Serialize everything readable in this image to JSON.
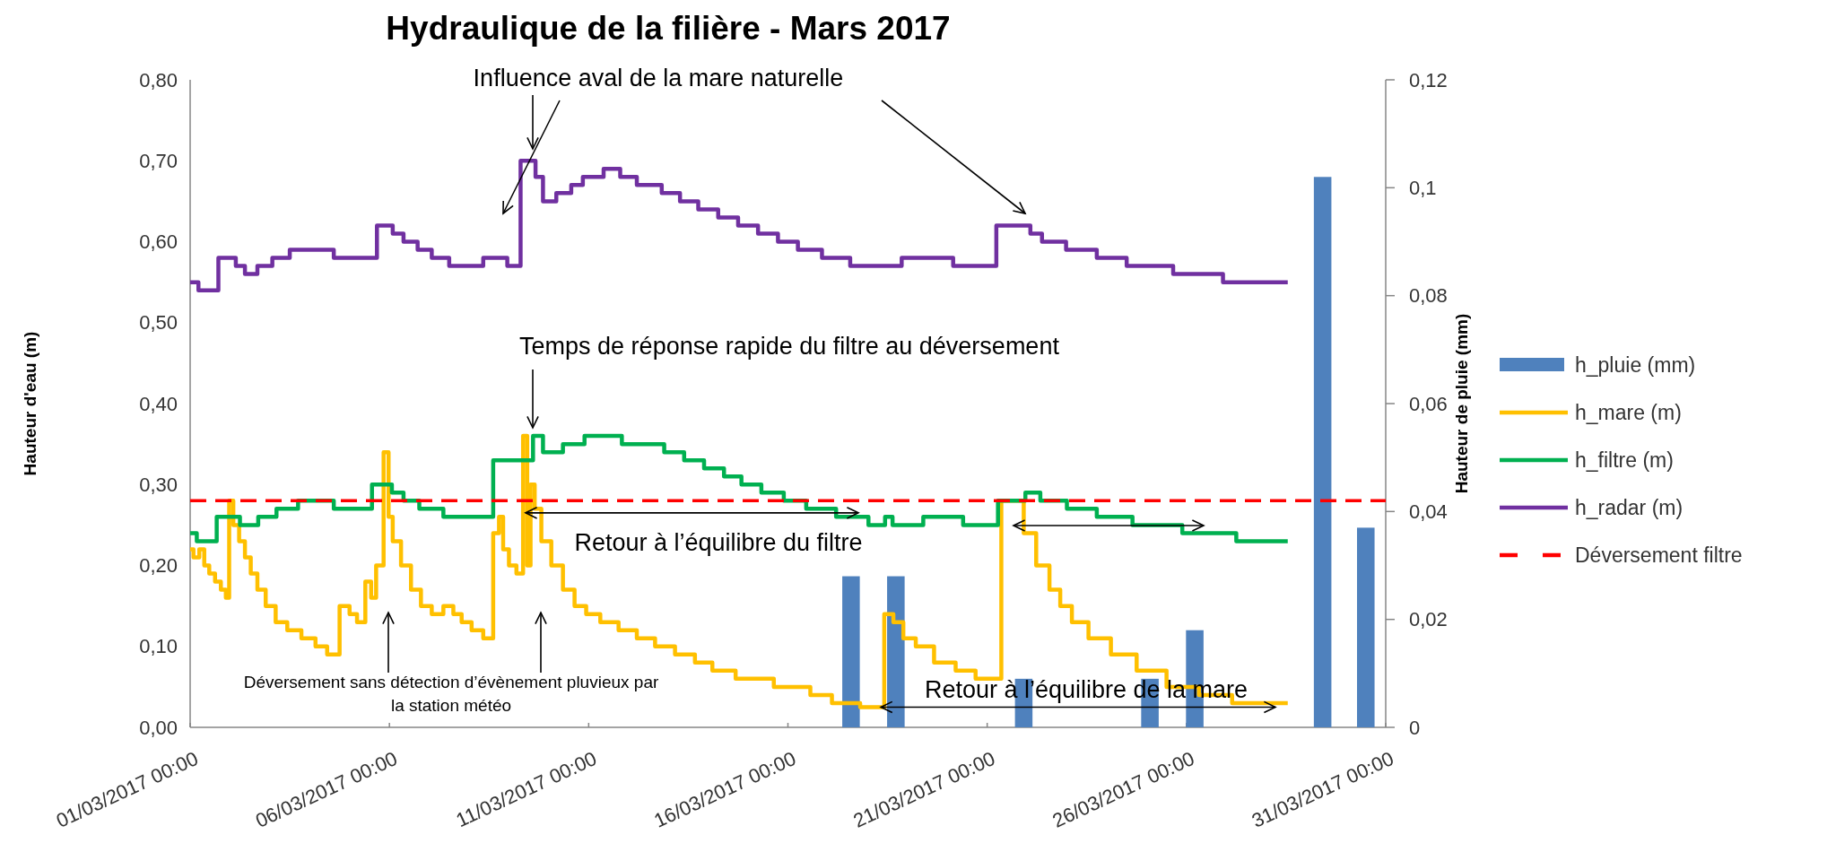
{
  "chart_data": {
    "type": "step",
    "title": "Hydraulique de la filière - Mars 2017",
    "ylabel": "Hauteur d'eau (m)",
    "y2label": "Hauteur de pluie (mm)",
    "xlim": [
      "2017-03-01",
      "2017-03-31"
    ],
    "xticks": [
      {
        "value": "2017-03-01",
        "label": "01/03/2017 00:00"
      },
      {
        "value": "2017-03-06",
        "label": "06/03/2017 00:00"
      },
      {
        "value": "2017-03-11",
        "label": "11/03/2017 00:00"
      },
      {
        "value": "2017-03-16",
        "label": "16/03/2017 00:00"
      },
      {
        "value": "2017-03-21",
        "label": "21/03/2017 00:00"
      },
      {
        "value": "2017-03-26",
        "label": "26/03/2017 00:00"
      },
      {
        "value": "2017-03-31",
        "label": "31/03/2017 00:00"
      }
    ],
    "ylim": [
      0,
      0.8
    ],
    "yticks": [
      {
        "value": 0,
        "label": "0,00"
      },
      {
        "value": 0.1,
        "label": "0,10"
      },
      {
        "value": 0.2,
        "label": "0,20"
      },
      {
        "value": 0.3,
        "label": "0,30"
      },
      {
        "value": 0.4,
        "label": "0,40"
      },
      {
        "value": 0.5,
        "label": "0,50"
      },
      {
        "value": 0.6,
        "label": "0,60"
      },
      {
        "value": 0.7,
        "label": "0,70"
      },
      {
        "value": 0.8,
        "label": "0,80"
      }
    ],
    "y2lim": [
      0,
      0.12
    ],
    "y2ticks": [
      0,
      {
        "value": 0.02,
        "label": "0,02"
      },
      {
        "value": 0.04,
        "label": "0,04"
      },
      {
        "value": 0.06,
        "label": "0,06"
      },
      {
        "value": 0.08,
        "label": "0,08"
      },
      {
        "value": 0.1,
        "label": "0,1"
      },
      {
        "value": 0.12,
        "label": "0,12"
      }
    ],
    "legend": "right",
    "grid": false,
    "series": [
      {
        "name": "h_pluie (mm)",
        "type": "bar",
        "axis": "y2",
        "color": "#4f81bd",
        "x": [
          "2017-03-17T14:00",
          "2017-03-18T17:00",
          "2017-03-21T22:00",
          "2017-03-25T02:00",
          "2017-03-26T05:00",
          "2017-03-29T10:00",
          "2017-03-30T12:00"
        ],
        "values": [
          0.028,
          0.028,
          0.009,
          0.009,
          0.018,
          0.102,
          0.037
        ]
      },
      {
        "name": "h_mare (m)",
        "color": "#ffc000",
        "x": [
          "2017-03-01T00:00",
          "2017-03-01T04:00",
          "2017-03-01T07:00",
          "2017-03-01T10:00",
          "2017-03-01T13:00",
          "2017-03-01T17:00",
          "2017-03-01T20:00",
          "2017-03-01T23:00",
          "2017-03-02T00:00",
          "2017-03-02T04:00",
          "2017-03-02T07:00",
          "2017-03-02T11:00",
          "2017-03-02T14:00",
          "2017-03-02T19:00",
          "2017-03-03T00:00",
          "2017-03-03T07:00",
          "2017-03-03T14:00",
          "2017-03-04T00:00",
          "2017-03-04T07:00",
          "2017-03-04T14:00",
          "2017-03-04T22:00",
          "2017-03-05T02:00",
          "2017-03-05T07:00",
          "2017-03-05T12:00",
          "2017-03-05T14:00",
          "2017-03-05T18:00",
          "2017-03-05T23:00",
          "2017-03-06T00:00",
          "2017-03-06T04:00",
          "2017-03-06T10:00",
          "2017-03-06T16:00",
          "2017-03-06T22:00",
          "2017-03-07T05:00",
          "2017-03-07T12:00",
          "2017-03-07T17:00",
          "2017-03-07T22:00",
          "2017-03-08T05:00",
          "2017-03-08T12:00",
          "2017-03-08T17:00",
          "2017-03-08T19:00",
          "2017-03-08T22:00",
          "2017-03-09T02:00",
          "2017-03-09T07:00",
          "2017-03-09T10:00",
          "2017-03-09T12:00",
          "2017-03-09T14:00",
          "2017-03-09T17:00",
          "2017-03-09T22:00",
          "2017-03-10T05:00",
          "2017-03-10T12:00",
          "2017-03-10T19:00",
          "2017-03-11T02:00",
          "2017-03-11T12:00",
          "2017-03-12T00:00",
          "2017-03-12T10:00",
          "2017-03-12T22:00",
          "2017-03-13T10:00",
          "2017-03-13T22:00",
          "2017-03-14T07:00",
          "2017-03-15T02:00",
          "2017-03-16T05:00",
          "2017-03-16T22:00",
          "2017-03-17T07:00",
          "2017-03-18T08:00",
          "2017-03-18T12:00",
          "2017-03-18T19:00",
          "2017-03-19T00:00",
          "2017-03-19T10:00",
          "2017-03-19T22:00",
          "2017-03-20T12:00",
          "2017-03-20T22:00",
          "2017-03-21T19:00",
          "2017-03-22T01:00",
          "2017-03-22T10:00",
          "2017-03-22T17:00",
          "2017-03-22T23:00",
          "2017-03-23T07:00",
          "2017-03-23T19:00",
          "2017-03-24T10:00",
          "2017-03-25T02:00",
          "2017-03-25T22:00",
          "2017-03-26T17:00",
          "2017-03-27T14:00",
          "2017-03-28T13:00"
        ],
        "values": [
          0.22,
          0.21,
          0.22,
          0.2,
          0.19,
          0.18,
          0.17,
          0.16,
          0.28,
          0.25,
          0.23,
          0.21,
          0.19,
          0.17,
          0.15,
          0.13,
          0.12,
          0.11,
          0.1,
          0.09,
          0.15,
          0.14,
          0.13,
          0.18,
          0.16,
          0.2,
          0.34,
          0.26,
          0.23,
          0.2,
          0.17,
          0.15,
          0.14,
          0.15,
          0.14,
          0.13,
          0.12,
          0.11,
          0.24,
          0.26,
          0.22,
          0.2,
          0.19,
          0.36,
          0.2,
          0.3,
          0.27,
          0.23,
          0.2,
          0.17,
          0.15,
          0.14,
          0.13,
          0.12,
          0.11,
          0.1,
          0.09,
          0.08,
          0.07,
          0.06,
          0.05,
          0.04,
          0.03,
          0.025,
          0.14,
          0.13,
          0.11,
          0.1,
          0.08,
          0.07,
          0.06,
          0.28,
          0.24,
          0.2,
          0.17,
          0.15,
          0.13,
          0.11,
          0.09,
          0.07,
          0.05,
          0.04,
          0.03,
          0.03
        ]
      },
      {
        "name": "h_filtre (m)",
        "color": "#00b050",
        "x": [
          "2017-03-01T00:00",
          "2017-03-01T08:00",
          "2017-03-02T00:00",
          "2017-03-02T12:00",
          "2017-03-02T22:00",
          "2017-03-03T10:00",
          "2017-03-04T00:00",
          "2017-03-05T05:00",
          "2017-03-05T22:00",
          "2017-03-06T05:00",
          "2017-03-06T12:00",
          "2017-03-07T00:00",
          "2017-03-07T17:00",
          "2017-03-09T12:00",
          "2017-03-09T17:00",
          "2017-03-10T00:00",
          "2017-03-10T17:00",
          "2017-03-11T02:00",
          "2017-03-12T14:00",
          "2017-03-13T05:00",
          "2017-03-13T14:00",
          "2017-03-14T05:00",
          "2017-03-14T14:00",
          "2017-03-15T02:00",
          "2017-03-15T14:00",
          "2017-03-16T05:00",
          "2017-03-16T17:00",
          "2017-03-17T17:00",
          "2017-03-18T08:00",
          "2017-03-18T13:00",
          "2017-03-18T17:00",
          "2017-03-20T02:00",
          "2017-03-20T17:00",
          "2017-03-21T20:00",
          "2017-03-22T02:00",
          "2017-03-22T14:00",
          "2017-03-23T10:00",
          "2017-03-24T02:00",
          "2017-03-25T05:00",
          "2017-03-26T14:00",
          "2017-03-27T22:00",
          "2017-03-28T13:00"
        ],
        "values": [
          0.24,
          0.23,
          0.26,
          0.25,
          0.26,
          0.27,
          0.28,
          0.27,
          0.3,
          0.29,
          0.28,
          0.27,
          0.26,
          0.33,
          0.36,
          0.34,
          0.35,
          0.36,
          0.35,
          0.34,
          0.33,
          0.32,
          0.31,
          0.3,
          0.29,
          0.28,
          0.27,
          0.26,
          0.25,
          0.26,
          0.25,
          0.26,
          0.25,
          0.28,
          0.29,
          0.28,
          0.27,
          0.26,
          0.25,
          0.24,
          0.23,
          0.23
        ]
      },
      {
        "name": "h_radar (m)",
        "color": "#7030a0",
        "x": [
          "2017-03-01T00:00",
          "2017-03-01T10:00",
          "2017-03-02T00:00",
          "2017-03-02T07:00",
          "2017-03-02T11:00",
          "2017-03-02T22:00",
          "2017-03-03T05:00",
          "2017-03-03T19:00",
          "2017-03-05T10:00",
          "2017-03-05T23:00",
          "2017-03-06T05:00",
          "2017-03-06T12:00",
          "2017-03-06T22:00",
          "2017-03-07T05:00",
          "2017-03-07T19:00",
          "2017-03-08T22:00",
          "2017-03-09T00:00",
          "2017-03-09T14:00",
          "2017-03-09T18:00",
          "2017-03-09T23:00",
          "2017-03-10T10:00",
          "2017-03-10T17:00",
          "2017-03-11T00:00",
          "2017-03-11T18:00",
          "2017-03-11T20:00",
          "2017-03-12T14:00",
          "2017-03-13T02:00",
          "2017-03-13T12:00",
          "2017-03-14T00:00",
          "2017-03-14T12:00",
          "2017-03-15T00:00",
          "2017-03-15T12:00",
          "2017-03-16T00:00",
          "2017-03-16T12:00",
          "2017-03-17T05:00",
          "2017-03-17T22:00",
          "2017-03-19T19:00",
          "2017-03-20T12:00",
          "2017-03-21T23:00",
          "2017-03-22T05:00",
          "2017-03-22T13:00",
          "2017-03-23T10:00",
          "2017-03-24T02:00",
          "2017-03-24T22:00",
          "2017-03-26T10:00",
          "2017-03-27T10:00",
          "2017-03-28T13:00"
        ],
        "values": [
          0.55,
          0.54,
          0.58,
          0.57,
          0.56,
          0.57,
          0.58,
          0.59,
          0.58,
          0.62,
          0.61,
          0.6,
          0.59,
          0.58,
          0.57,
          0.58,
          0.57,
          0.7,
          0.68,
          0.65,
          0.66,
          0.67,
          0.68,
          0.69,
          0.68,
          0.67,
          0.66,
          0.65,
          0.64,
          0.63,
          0.62,
          0.61,
          0.6,
          0.59,
          0.58,
          0.57,
          0.58,
          0.57,
          0.62,
          0.61,
          0.6,
          0.59,
          0.58,
          0.57,
          0.56,
          0.55,
          0.55
        ]
      }
    ],
    "ref_lines": [
      {
        "axis": "y",
        "value": 0.28,
        "label": "Déversement filtre",
        "color": "#ff0000",
        "line_style": "dashed"
      }
    ],
    "annotations": [
      "Influence aval de la mare naturelle",
      "Temps de réponse rapide du filtre au déversement",
      {
        "text": "Retour à l’équilibre du filtre",
        "x": "2017-03-09T10:00",
        "y": 0.265
      },
      "Déversement sans détection d’évènement pluvieux par la station météo",
      {
        "text": "Retour à l’équilibre de la mare",
        "x": "2017-03-18T08:00",
        "y": 0.025
      }
    ]
  }
}
